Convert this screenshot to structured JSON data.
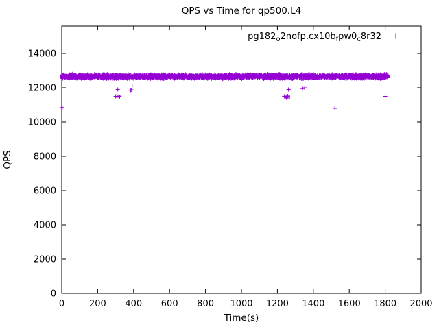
{
  "title": "QPS vs Time for qp500.L4",
  "axes": {
    "xlabel": "Time(s)",
    "ylabel": "QPS",
    "xlim": [
      0,
      2000
    ],
    "ylim": [
      0,
      15600
    ],
    "x_ticks": [
      0,
      200,
      400,
      600,
      800,
      1000,
      1200,
      1400,
      1600,
      1800,
      2000
    ],
    "y_ticks": [
      0,
      2000,
      4000,
      6000,
      8000,
      10000,
      12000,
      14000
    ]
  },
  "legend": {
    "label_text": "pg182_o2nofp.cx10b_fpw0_c8r32",
    "label_parts": [
      {
        "text": "pg182",
        "sub": false
      },
      {
        "text": "o",
        "sub": true
      },
      {
        "text": "2nofp.cx10b",
        "sub": false
      },
      {
        "text": "f",
        "sub": true
      },
      {
        "text": "pw0",
        "sub": false
      },
      {
        "text": "c",
        "sub": true
      },
      {
        "text": "8r32",
        "sub": false
      }
    ],
    "marker": "plus"
  },
  "chart_data": {
    "type": "scatter",
    "title": "QPS vs Time for qp500.L4",
    "xlabel": "Time(s)",
    "ylabel": "QPS",
    "xlim": [
      0,
      2000
    ],
    "ylim": [
      0,
      15600
    ],
    "grid": false,
    "legend_position": "top-right-inside",
    "marker": "plus",
    "color": "#9400D3",
    "series": [
      {
        "name": "pg182_o2nofp.cx10b_fpw0_c8r32",
        "band": {
          "comment": "dense steady-state band of samples",
          "x_range": [
            0,
            1815
          ],
          "y_center": 12655,
          "y_jitter": 110,
          "approx_points": 3000
        },
        "outliers": [
          [
            3,
            10850
          ],
          [
            300,
            11500
          ],
          [
            308,
            11450
          ],
          [
            312,
            11900
          ],
          [
            318,
            11520
          ],
          [
            322,
            11480
          ],
          [
            383,
            11850
          ],
          [
            388,
            11880
          ],
          [
            392,
            12100
          ],
          [
            1238,
            11500
          ],
          [
            1248,
            11450
          ],
          [
            1252,
            11400
          ],
          [
            1255,
            11480
          ],
          [
            1258,
            11520
          ],
          [
            1262,
            11900
          ],
          [
            1268,
            11460
          ],
          [
            1340,
            11950
          ],
          [
            1352,
            12000
          ],
          [
            1520,
            10800
          ],
          [
            1800,
            11500
          ]
        ]
      }
    ]
  }
}
